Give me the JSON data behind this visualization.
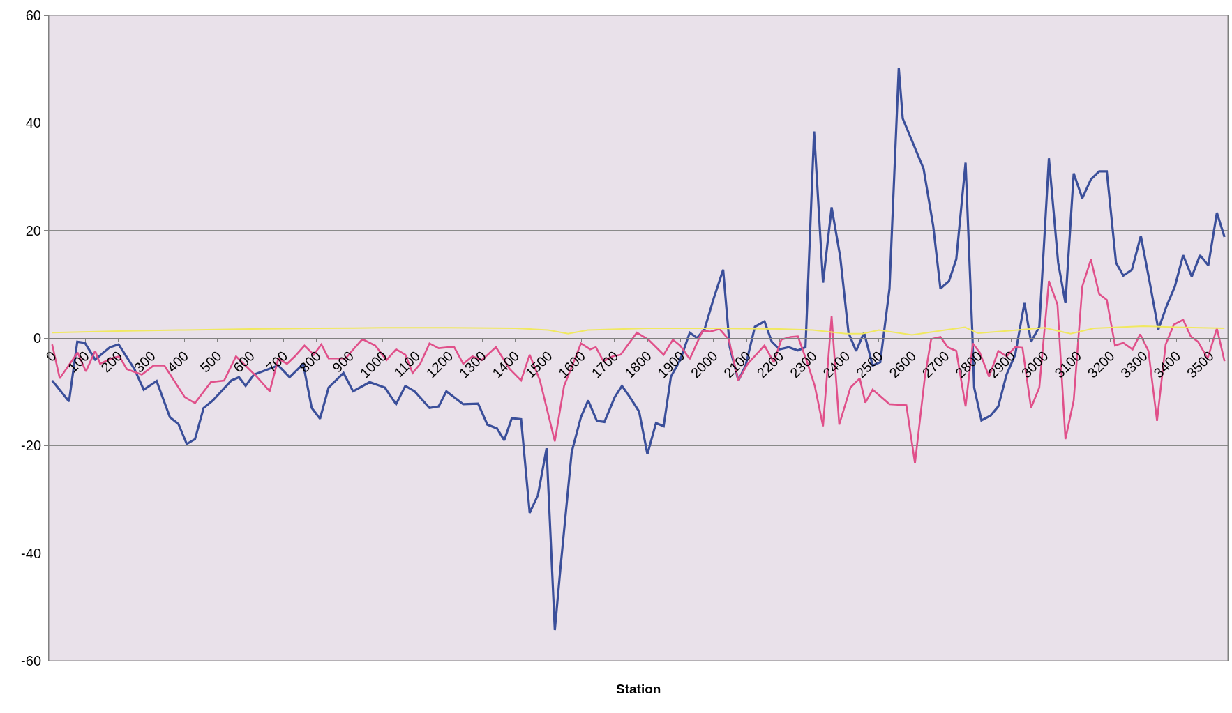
{
  "chart_data": {
    "type": "line",
    "xlabel": "Station",
    "xlim": [
      -10,
      3555
    ],
    "xticks": [
      0,
      100,
      200,
      300,
      400,
      500,
      600,
      700,
      800,
      900,
      1000,
      1100,
      1200,
      1300,
      1400,
      1500,
      1600,
      1700,
      1800,
      1900,
      2000,
      2100,
      2200,
      2300,
      2400,
      2500,
      2600,
      2700,
      2800,
      2900,
      3000,
      3100,
      3200,
      3300,
      3400,
      3500
    ],
    "ylim": [
      -60,
      60
    ],
    "yticks": [
      -60,
      -40,
      -20,
      0,
      20,
      40,
      60
    ],
    "grid": "y",
    "marker": "none",
    "line_style": "solid",
    "series": [
      {
        "color": "#3b4f9a",
        "x": [
          0,
          51,
          76,
          99,
          130,
          175,
          201,
          249,
          277,
          316,
          356,
          382,
          407,
          432,
          458,
          486,
          542,
          565,
          585,
          610,
          684,
          718,
          759,
          785,
          810,
          836,
          881,
          910,
          960,
          1006,
          1040,
          1068,
          1096,
          1141,
          1169,
          1192,
          1243,
          1288,
          1316,
          1345,
          1367,
          1390,
          1418,
          1444,
          1469,
          1495,
          1520,
          1537,
          1571,
          1599,
          1621,
          1647,
          1670,
          1701,
          1723,
          1747,
          1775,
          1800,
          1826,
          1849,
          1871,
          1899,
          1928,
          1950,
          1973,
          2001,
          2029,
          2049,
          2075,
          2097,
          2125,
          2154,
          2176,
          2199,
          2227,
          2255,
          2278,
          2304,
          2331,
          2357,
          2383,
          2408,
          2431,
          2455,
          2481,
          2504,
          2532,
          2560,
          2572,
          2635,
          2664,
          2686,
          2712,
          2734,
          2762,
          2782,
          2788,
          2810,
          2838,
          2861,
          2886,
          2912,
          2940,
          2960,
          2985,
          3014,
          3042,
          3064,
          3089,
          3115,
          3141,
          3166,
          3189,
          3217,
          3239,
          3265,
          3292,
          3319,
          3345,
          3369,
          3395,
          3420,
          3446,
          3471,
          3496,
          3522,
          3545
        ],
        "values": [
          -7.9,
          -11.8,
          -0.7,
          -0.9,
          -4,
          -1.7,
          -1.2,
          -5.8,
          -9.6,
          -8,
          -14.7,
          -16,
          -19.7,
          -18.8,
          -13,
          -11.6,
          -7.9,
          -7.3,
          -8.9,
          -6.8,
          -5.1,
          -7.3,
          -4.8,
          -13,
          -15,
          -9.2,
          -6.5,
          -9.9,
          -8.2,
          -9.2,
          -12.3,
          -8.9,
          -9.9,
          -13,
          -12.7,
          -9.9,
          -12.3,
          -12.2,
          -16.1,
          -16.8,
          -19,
          -14.9,
          -15.1,
          -32.5,
          -29.2,
          -20.5,
          -54.3,
          -42.8,
          -21.2,
          -14.7,
          -11.6,
          -15.4,
          -15.6,
          -11,
          -8.9,
          -11,
          -13.7,
          -21.6,
          -15.8,
          -16.4,
          -7.2,
          -4.1,
          1,
          0,
          1.7,
          7.5,
          12.7,
          -1.7,
          -7.9,
          -5.1,
          2.1,
          3.1,
          -0.7,
          -2.1,
          -1.7,
          -2.3,
          -1.7,
          38.4,
          10.3,
          24.3,
          15.1,
          1,
          -2.4,
          1,
          -5.1,
          -4.5,
          9.2,
          50.2,
          40.8,
          31.5,
          20.9,
          9.2,
          10.6,
          14.7,
          32.6,
          1.7,
          -9.2,
          -15.3,
          -14.4,
          -12.7,
          -6.8,
          -3.1,
          6.5,
          -0.7,
          2.1,
          33.4,
          14,
          6.5,
          30.6,
          26,
          29.5,
          31,
          31,
          14,
          11.6,
          12.7,
          19,
          10.3,
          1.6,
          5.8,
          9.6,
          15.4,
          11.4,
          15.4,
          13.5,
          23.3,
          18.8
        ]
      },
      {
        "color": "#e0508a",
        "x": [
          0,
          23,
          77,
          102,
          130,
          145,
          179,
          203,
          226,
          271,
          307,
          339,
          401,
          432,
          480,
          520,
          556,
          619,
          658,
          684,
          710,
          734,
          763,
          791,
          814,
          836,
          864,
          887,
          938,
          977,
          1011,
          1040,
          1068,
          1090,
          1113,
          1141,
          1169,
          1215,
          1243,
          1271,
          1299,
          1342,
          1384,
          1418,
          1444,
          1475,
          1520,
          1548,
          1573,
          1599,
          1627,
          1644,
          1667,
          1695,
          1719,
          1768,
          1803,
          1849,
          1877,
          1899,
          1928,
          1967,
          1990,
          2018,
          2046,
          2075,
          2103,
          2154,
          2182,
          2205,
          2233,
          2255,
          2283,
          2306,
          2331,
          2357,
          2380,
          2414,
          2442,
          2459,
          2481,
          2532,
          2583,
          2609,
          2639,
          2658,
          2686,
          2708,
          2734,
          2762,
          2784,
          2805,
          2833,
          2861,
          2886,
          2912,
          2934,
          2960,
          2985,
          3014,
          3040,
          3064,
          3089,
          3115,
          3141,
          3166,
          3189,
          3214,
          3239,
          3267,
          3290,
          3315,
          3341,
          3367,
          3392,
          3420,
          3443,
          3465,
          3494,
          3522,
          3545
        ],
        "values": [
          -1.2,
          -7.5,
          -2.7,
          -6.2,
          -2.4,
          -4.8,
          -3.8,
          -3.4,
          -5.8,
          -6.8,
          -5.1,
          -5.1,
          -11,
          -12.1,
          -8.2,
          -7.9,
          -3.4,
          -7.2,
          -9.9,
          -3.8,
          -4.8,
          -3.4,
          -1.4,
          -3.1,
          -1.2,
          -3.8,
          -3.8,
          -3.8,
          -0.2,
          -1.4,
          -4.1,
          -2.1,
          -3.1,
          -6.5,
          -4.8,
          -1,
          -1.9,
          -1.6,
          -4.8,
          -3.4,
          -4.1,
          -1.7,
          -5.8,
          -7.9,
          -3.1,
          -7.9,
          -19.2,
          -8.9,
          -5.1,
          -1,
          -2.1,
          -1.7,
          -4.3,
          -3.4,
          -3.1,
          1,
          -0.3,
          -3.1,
          -0.3,
          -1.4,
          -3.9,
          1.4,
          1.2,
          1.7,
          -0.3,
          -7.9,
          -4.8,
          -1.4,
          -4.5,
          -0.3,
          0.2,
          0.3,
          -4.5,
          -8.9,
          -16.4,
          4.1,
          -16.1,
          -9.2,
          -7.5,
          -12,
          -9.6,
          -12.3,
          -12.5,
          -23.3,
          -7.2,
          -0.2,
          0.2,
          -1.7,
          -2.4,
          -12.7,
          -1,
          -2.7,
          -7.2,
          -2.4,
          -3.4,
          -1.7,
          -1.8,
          -13,
          -9.2,
          10.6,
          6.2,
          -18.8,
          -11.6,
          9.6,
          14.6,
          8.2,
          7.1,
          -1.4,
          -0.9,
          -2.1,
          0.7,
          -2.4,
          -15.4,
          -1.2,
          2.5,
          3.4,
          0.3,
          -0.7,
          -3.8,
          1.8,
          -4.3
        ]
      },
      {
        "color": "#f0e860",
        "x": [
          0,
          200,
          400,
          600,
          800,
          1000,
          1200,
          1400,
          1500,
          1560,
          1620,
          1800,
          2000,
          2200,
          2300,
          2400,
          2450,
          2500,
          2600,
          2700,
          2760,
          2800,
          2900,
          3000,
          3080,
          3150,
          3300,
          3400,
          3545
        ],
        "values": [
          1,
          1.3,
          1.5,
          1.7,
          1.8,
          1.9,
          1.9,
          1.8,
          1.5,
          0.8,
          1.5,
          1.8,
          1.8,
          1.7,
          1.5,
          0.8,
          0.8,
          1.5,
          0.6,
          1.5,
          2,
          0.9,
          1.4,
          1.9,
          0.8,
          1.8,
          2.2,
          2,
          1.8
        ]
      }
    ]
  }
}
